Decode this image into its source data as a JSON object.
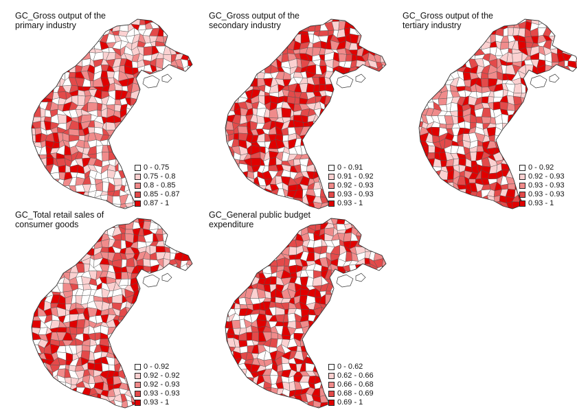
{
  "panels": [
    {
      "title": "GC_Gross output of the\nprimary industry",
      "legend": [
        "0 - 0.75",
        "0.75 - 0.8",
        "0.8 - 0.85",
        "0.85 - 0.87",
        "0.87 - 1"
      ]
    },
    {
      "title": "GC_Gross output of the\nsecondary industry",
      "legend": [
        "0 - 0.91",
        "0.91 - 0.92",
        "0.92 - 0.93",
        "0.93 - 0.93",
        "0.93 - 1"
      ]
    },
    {
      "title": "GC_Gross output of the\ntertiary industry",
      "legend": [
        "0 - 0.92",
        "0.92 - 0.93",
        "0.93 - 0.93",
        "0.93 - 0.93",
        "0.93 - 1"
      ]
    },
    {
      "title": "GC_Total retail sales of\nconsumer goods",
      "legend": [
        "0 - 0.92",
        "0.92 - 0.92",
        "0.92 - 0.93",
        "0.93 - 0.93",
        "0.93 - 1"
      ]
    },
    {
      "title": "GC_General public budget\nexpenditure",
      "legend": [
        "0 - 0.62",
        "0.62 - 0.66",
        "0.66 - 0.68",
        "0.68 - 0.69",
        "0.69 - 1"
      ]
    }
  ],
  "class_colors": [
    "#ffffff",
    "#fbd1d1",
    "#f08b8b",
    "#e34a4a",
    "#e00000"
  ],
  "border_color": "#555555"
}
